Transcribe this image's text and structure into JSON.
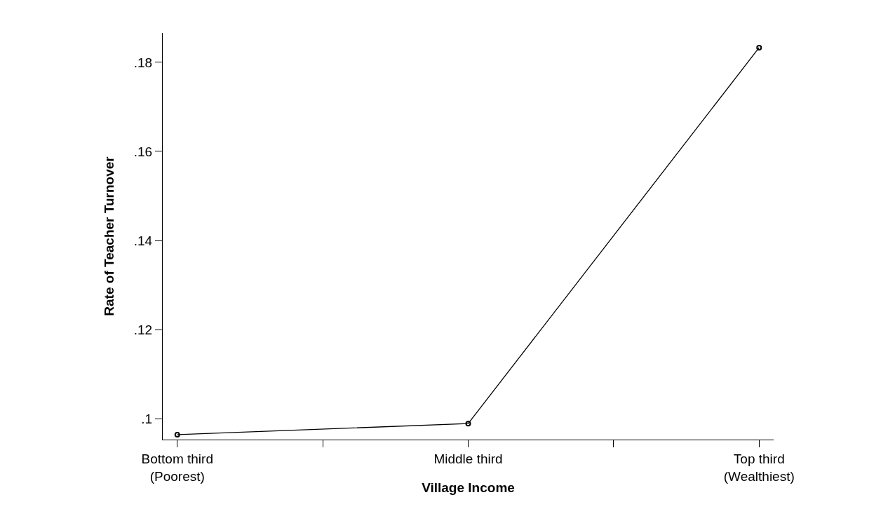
{
  "chart_data": {
    "type": "line",
    "xlabel": "Village Income",
    "ylabel": "Rate of Teacher Turnover",
    "categories": [
      "Bottom third\n(Poorest)",
      null,
      "Middle third",
      null,
      "Top third\n(Wealthiest)"
    ],
    "series": [
      {
        "color": "#000000",
        "values": [
          0.0964,
          null,
          0.0989,
          null,
          0.1833
        ]
      }
    ],
    "ylim": [
      0.0953,
      0.1866
    ],
    "yticks": [
      {
        "value": 0.1,
        "label": ".1"
      },
      {
        "value": 0.12,
        "label": ".12"
      },
      {
        "value": 0.14,
        "label": ".14"
      },
      {
        "value": 0.16,
        "label": ".16"
      },
      {
        "value": 0.18,
        "label": ".18"
      }
    ],
    "legend": false,
    "marker": "circle",
    "line_style": "solid"
  }
}
